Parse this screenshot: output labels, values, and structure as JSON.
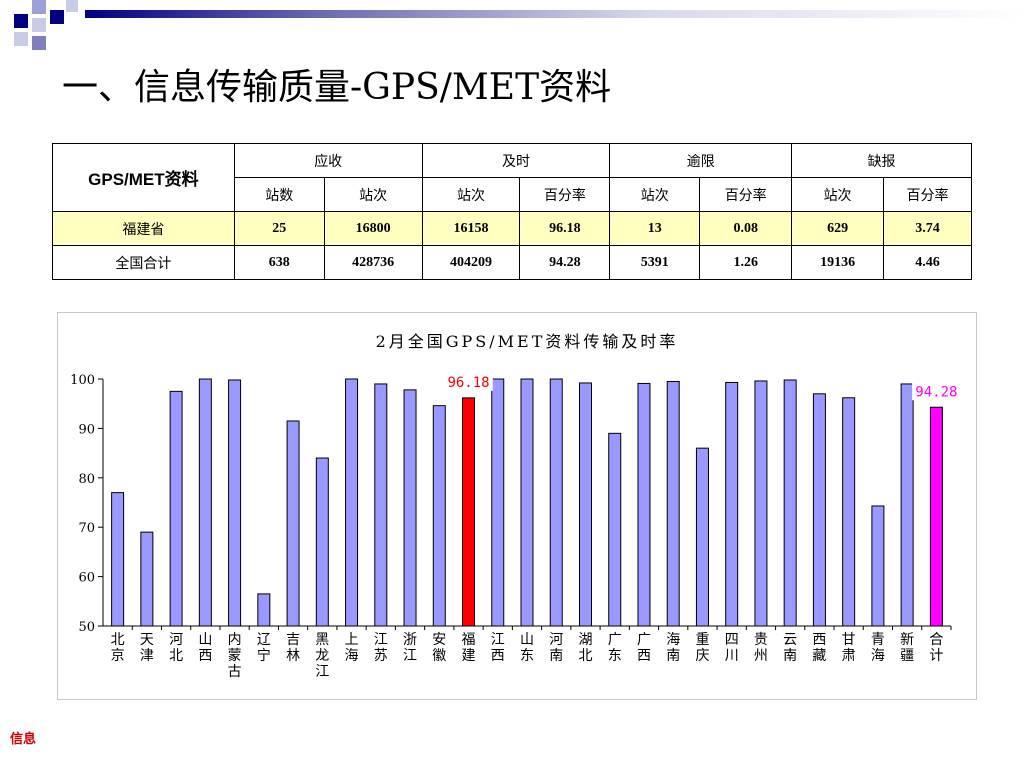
{
  "slide": {
    "title": "一、信息传输质量-GPS/MET资料",
    "footer": "信息"
  },
  "table": {
    "corner": "GPS/MET资料",
    "groups": [
      "应收",
      "及时",
      "逾限",
      "缺报"
    ],
    "subheaders": [
      "站数",
      "站次",
      "站次",
      "百分率",
      "站次",
      "百分率",
      "站次",
      "百分率"
    ],
    "rows": [
      {
        "name": "福建省",
        "values": [
          "25",
          "16800",
          "16158",
          "96.18",
          "13",
          "0.08",
          "629",
          "3.74"
        ]
      },
      {
        "name": "全国合计",
        "values": [
          "638",
          "428736",
          "404209",
          "94.28",
          "5391",
          "1.26",
          "19136",
          "4.46"
        ]
      }
    ]
  },
  "chart_data": {
    "type": "bar",
    "title": "2月全国GPS/MET资料传输及时率",
    "categories": [
      "北京",
      "天津",
      "河北",
      "山西",
      "内蒙古",
      "辽宁",
      "吉林",
      "黑龙江",
      "上海",
      "江苏",
      "浙江",
      "安徽",
      "福建",
      "江西",
      "山东",
      "河南",
      "湖北",
      "广东",
      "广西",
      "海南",
      "重庆",
      "四川",
      "贵州",
      "云南",
      "西藏",
      "甘肃",
      "青海",
      "新疆",
      "合计"
    ],
    "values": [
      77,
      69,
      97.5,
      100,
      99.8,
      56.5,
      91.5,
      84,
      100,
      99,
      97.8,
      94.6,
      96.18,
      100,
      100,
      100,
      99.2,
      89,
      99.1,
      99.5,
      86,
      99.3,
      99.6,
      99.8,
      97,
      96.2,
      74.3,
      99,
      94.28
    ],
    "ylim": [
      50,
      100
    ],
    "yticks": [
      "100",
      "90",
      "80",
      "70",
      "60",
      "50"
    ],
    "highlight": {
      "福建": "#ff0000",
      "合计": "#ff00ff"
    },
    "bar_color": "#9999ff",
    "data_labels": [
      {
        "category": "福建",
        "text": "96.18",
        "color": "#ff0000"
      },
      {
        "category": "合计",
        "text": "94.28",
        "color": "#ff00ff"
      }
    ],
    "grid": false,
    "legend": "none"
  }
}
